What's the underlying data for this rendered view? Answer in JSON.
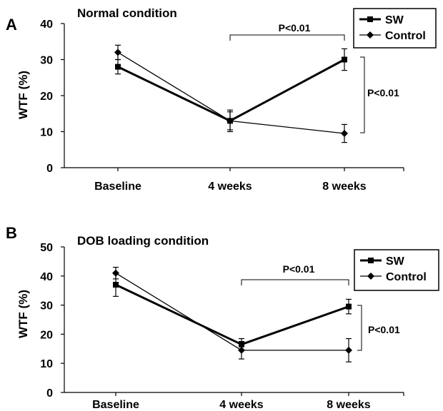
{
  "chart_data": [
    {
      "panel_label": "A",
      "type": "line",
      "title": "Normal  condition",
      "ylabel": "WTF  (%)",
      "xlabel": "",
      "categories": [
        "Baseline",
        "4  weeks",
        "8  weeks"
      ],
      "ylim": [
        0,
        40
      ],
      "yticks": [
        "0",
        "10",
        "20",
        "30",
        "40"
      ],
      "grid": false,
      "legend_position": "top-right",
      "series": [
        {
          "name": "SW",
          "marker": "square",
          "line": "thick",
          "values": [
            28,
            13,
            30
          ],
          "errors": [
            2,
            2.5,
            3
          ]
        },
        {
          "name": "Control",
          "marker": "diamond",
          "line": "thin",
          "values": [
            32,
            13,
            9.5
          ],
          "errors": [
            2,
            3,
            2.5
          ]
        }
      ],
      "annotations": [
        {
          "text": "P<0.01",
          "kind": "horizontal-bracket"
        },
        {
          "text": "P<0.01",
          "kind": "vertical-bracket"
        }
      ]
    },
    {
      "panel_label": "B",
      "type": "line",
      "title": "DOB  loading  condition",
      "ylabel": "WTF  (%)",
      "xlabel": "",
      "categories": [
        "Baseline",
        "4  weeks",
        "8  weeks"
      ],
      "ylim": [
        0,
        50
      ],
      "yticks": [
        "0",
        "10",
        "20",
        "30",
        "40",
        "50"
      ],
      "grid": false,
      "legend_position": "top-right",
      "series": [
        {
          "name": "SW",
          "marker": "square",
          "line": "thick",
          "values": [
            37,
            16.5,
            29.5
          ],
          "errors": [
            4,
            2,
            2.5
          ]
        },
        {
          "name": "Control",
          "marker": "diamond",
          "line": "thin",
          "values": [
            41,
            14.5,
            14.5
          ],
          "errors": [
            2,
            3,
            4
          ]
        }
      ],
      "annotations": [
        {
          "text": "P<0.01",
          "kind": "horizontal-bracket"
        },
        {
          "text": "P<0.01",
          "kind": "vertical-bracket"
        }
      ]
    }
  ]
}
